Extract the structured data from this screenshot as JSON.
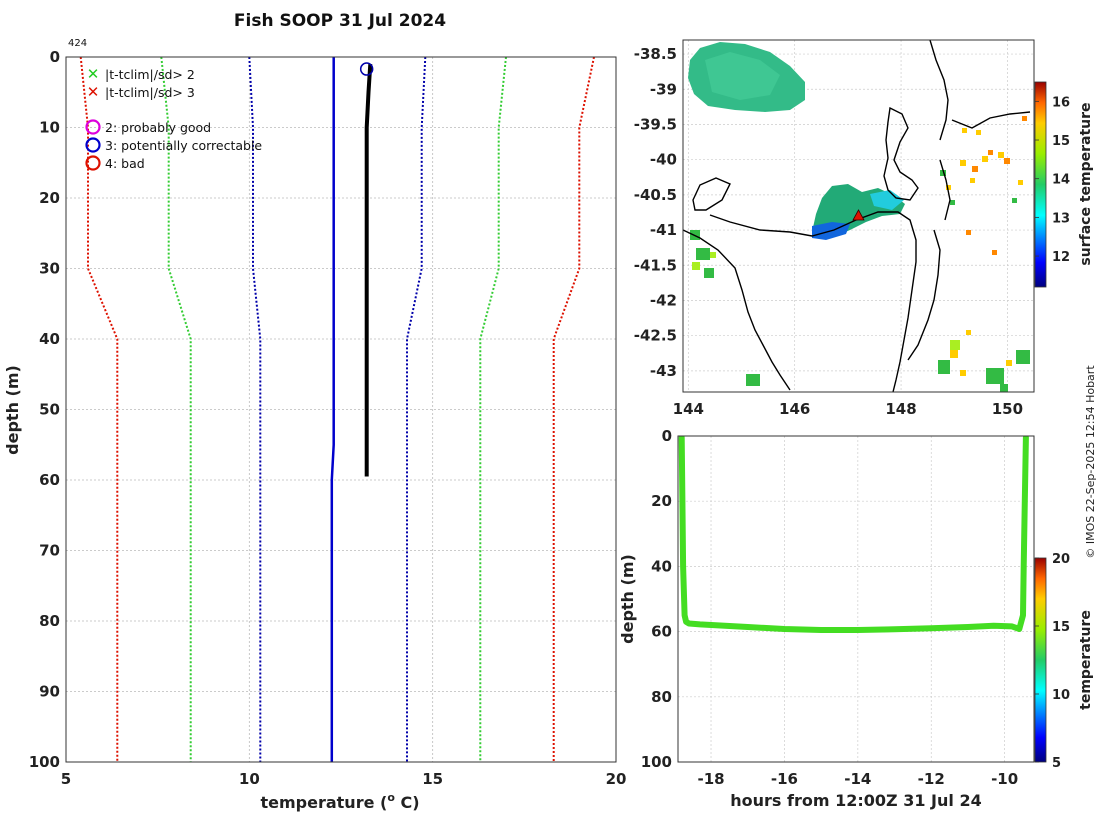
{
  "title": "Fish SOOP 31 Jul 2024",
  "profile_id": "424",
  "credit": "© IMOS 22-Sep-2025 12:54 Hobart",
  "colors": {
    "profile": "#000000",
    "clim_mean": "#0000cc",
    "sd1": "#0000aa",
    "sd2": "#33cc33",
    "sd3": "#dd1100",
    "bg": "#ffffff"
  },
  "legend": {
    "sd2_label": "|t-tclim|/sd> 2",
    "sd3_label": "|t-tclim|/sd> 3",
    "flag2_label": "2: probably good",
    "flag3_label": "3: potentially correctable",
    "flag4_label": "4: bad"
  },
  "chart_data": [
    {
      "type": "line",
      "name": "profile",
      "xlabel": "temperature (° C)",
      "xlabel_main": "temperature (",
      "xlabel_sup": "o",
      "xlabel_end": " C)",
      "ylabel": "depth (m)",
      "xlim": [
        5,
        20
      ],
      "ylim": [
        0,
        100
      ],
      "xticks": [
        5,
        10,
        15,
        20
      ],
      "yticks": [
        0,
        10,
        20,
        30,
        40,
        50,
        60,
        70,
        80,
        90,
        100
      ],
      "grid": true,
      "series": [
        {
          "name": "observed",
          "color": "#000000",
          "width": 4,
          "dash": "",
          "temp": [
            13.3,
            13.25,
            13.2,
            13.2,
            13.2,
            13.2,
            13.2,
            13.2,
            13.2
          ],
          "depth": [
            1,
            5,
            10,
            20,
            30,
            40,
            50,
            55,
            59.5
          ]
        },
        {
          "name": "climatology mean",
          "color": "#0000cc",
          "width": 2.5,
          "dash": "",
          "temp": [
            12.3,
            12.3,
            12.3,
            12.3,
            12.3,
            12.3,
            12.3,
            12.25,
            12.25,
            12.25
          ],
          "depth": [
            0,
            10,
            20,
            30,
            40,
            50,
            55,
            60,
            80,
            100
          ]
        },
        {
          "name": "-1 sd",
          "color": "#0000aa",
          "width": 2,
          "dash": "2,2",
          "temp": [
            10.0,
            10.1,
            10.1,
            10.1,
            10.3,
            10.3,
            10.3
          ],
          "depth": [
            0,
            10,
            20,
            30,
            40,
            60,
            100
          ]
        },
        {
          "name": "+1 sd",
          "color": "#0000aa",
          "width": 2,
          "dash": "2,2",
          "temp": [
            14.8,
            14.7,
            14.7,
            14.7,
            14.3,
            14.3,
            14.3
          ],
          "depth": [
            0,
            10,
            20,
            30,
            40,
            60,
            100
          ]
        },
        {
          "name": "-2 sd",
          "color": "#33cc33",
          "width": 2,
          "dash": "2,2",
          "temp": [
            7.6,
            7.8,
            7.8,
            7.8,
            8.4,
            8.4,
            8.4
          ],
          "depth": [
            0,
            10,
            20,
            30,
            40,
            60,
            100
          ]
        },
        {
          "name": "+2 sd",
          "color": "#33cc33",
          "width": 2,
          "dash": "2,2",
          "temp": [
            17.0,
            16.8,
            16.8,
            16.8,
            16.3,
            16.3,
            16.3
          ],
          "depth": [
            0,
            10,
            20,
            30,
            40,
            60,
            100
          ]
        },
        {
          "name": "-3 sd",
          "color": "#dd1100",
          "width": 2,
          "dash": "2,2",
          "temp": [
            5.4,
            5.6,
            5.6,
            5.6,
            6.4,
            6.4,
            6.4
          ],
          "depth": [
            0,
            10,
            20,
            30,
            40,
            60,
            100
          ]
        },
        {
          "name": "+3 sd",
          "color": "#dd1100",
          "width": 2,
          "dash": "2,2",
          "temp": [
            19.4,
            19.0,
            19.0,
            19.0,
            18.3,
            18.3,
            18.3
          ],
          "depth": [
            0,
            10,
            20,
            30,
            40,
            60,
            100
          ]
        }
      ],
      "markers": [
        {
          "temp": 13.2,
          "depth": 1,
          "flag": 3,
          "color": "#0000aa"
        }
      ]
    },
    {
      "type": "heatmap",
      "name": "map",
      "xlim": [
        143.9,
        150.5
      ],
      "ylim": [
        -43.3,
        -38.3
      ],
      "xticks": [
        144,
        146,
        148,
        150
      ],
      "yticks": [
        -38.5,
        -39,
        -39.5,
        -40,
        -40.5,
        -41,
        -41.5,
        -42,
        -42.5,
        -43
      ],
      "grid": true,
      "colorbar": {
        "label": "surface temperature",
        "ticks": [
          12,
          13,
          14,
          15,
          16
        ],
        "range": [
          11.2,
          16.5
        ]
      },
      "station": {
        "lon": 147.2,
        "lat": -40.8,
        "color": "#dd1100"
      }
    },
    {
      "type": "scatter",
      "name": "timeseries",
      "xlabel": "hours from 12:00Z 31 Jul 24",
      "ylabel": "depth (m)",
      "xlim": [
        -18.9,
        -9.2
      ],
      "ylim": [
        0,
        100
      ],
      "xticks": [
        -18,
        -16,
        -14,
        -12,
        -10
      ],
      "yticks": [
        0,
        20,
        40,
        60,
        80,
        100
      ],
      "grid": true,
      "colorbar": {
        "label": "temperature",
        "ticks": [
          5,
          10,
          15,
          20
        ],
        "range": [
          5,
          20
        ]
      },
      "track": {
        "hours": [
          -18.8,
          -18.78,
          -18.76,
          -18.72,
          -18.68,
          -18.6,
          -18.3,
          -17,
          -16,
          -15,
          -14,
          -13,
          -12,
          -11,
          -10.3,
          -9.8,
          -9.6,
          -9.5,
          -9.48,
          -9.45,
          -9.42
        ],
        "depth": [
          0.5,
          20,
          40,
          55,
          57,
          57.5,
          57.8,
          58.6,
          59.2,
          59.5,
          59.5,
          59.3,
          59.0,
          58.6,
          58.2,
          58.4,
          59.2,
          55,
          40,
          20,
          0.5
        ],
        "temp": 13.2
      }
    }
  ]
}
